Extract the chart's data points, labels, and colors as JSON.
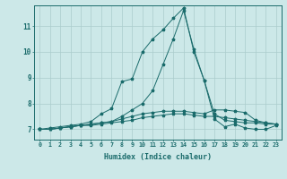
{
  "title": "",
  "xlabel": "Humidex (Indice chaleur)",
  "background_color": "#cce8e8",
  "grid_color": "#aacccc",
  "line_color": "#1a6b6b",
  "xlim": [
    -0.5,
    23.5
  ],
  "ylim": [
    6.6,
    11.8
  ],
  "yticks": [
    7,
    8,
    9,
    10,
    11
  ],
  "xticks": [
    0,
    1,
    2,
    3,
    4,
    5,
    6,
    7,
    8,
    9,
    10,
    11,
    12,
    13,
    14,
    15,
    16,
    17,
    18,
    19,
    20,
    21,
    22,
    23
  ],
  "series1": [
    7.0,
    7.0,
    7.05,
    7.1,
    7.15,
    7.2,
    7.25,
    7.3,
    7.5,
    7.75,
    8.0,
    8.5,
    9.5,
    10.5,
    11.6,
    10.1,
    8.9,
    7.6,
    7.35,
    7.3,
    7.25,
    7.25,
    7.2,
    7.2
  ],
  "series2": [
    7.0,
    7.05,
    7.1,
    7.15,
    7.2,
    7.3,
    7.6,
    7.8,
    8.85,
    8.95,
    10.0,
    10.5,
    10.85,
    11.3,
    11.7,
    10.0,
    8.9,
    7.4,
    7.1,
    7.2,
    7.05,
    7.0,
    7.0,
    7.15
  ],
  "series3": [
    7.0,
    7.0,
    7.05,
    7.1,
    7.15,
    7.15,
    7.2,
    7.25,
    7.3,
    7.35,
    7.45,
    7.5,
    7.55,
    7.6,
    7.6,
    7.55,
    7.5,
    7.5,
    7.45,
    7.4,
    7.35,
    7.3,
    7.25,
    7.2
  ],
  "series4": [
    7.0,
    7.0,
    7.05,
    7.1,
    7.15,
    7.2,
    7.25,
    7.3,
    7.4,
    7.5,
    7.6,
    7.65,
    7.7,
    7.7,
    7.7,
    7.65,
    7.6,
    7.75,
    7.75,
    7.7,
    7.65,
    7.35,
    7.25,
    7.2
  ]
}
